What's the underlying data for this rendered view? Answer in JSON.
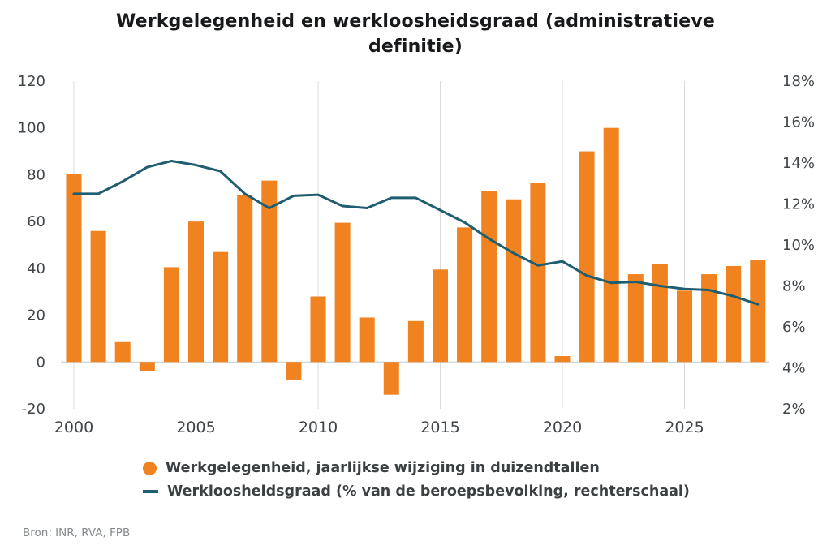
{
  "title": "Werkgelegenheid en werkloosheidsgraad (administratieve\ndefinitie)",
  "source": "Bron: INR, RVA, FPB",
  "legend": {
    "bars": "Werkgelegenheid, jaarlijkse wijziging in duizendtallen",
    "line": "Werkloosheidsgraad (% van de beroepsbevolking, rechterschaal)"
  },
  "colors": {
    "bar": "#F0821F",
    "line": "#1F5D70",
    "grid": "#D9DBDD",
    "zero": "#C6CACC",
    "axis_text": "#41464a",
    "legend_text": "#3b4043",
    "source_text": "#84888b"
  },
  "chart_data": {
    "type": "bar",
    "title": "Werkgelegenheid en werkloosheidsgraad (administratieve definitie)",
    "x": [
      2000,
      2001,
      2002,
      2003,
      2004,
      2005,
      2006,
      2007,
      2008,
      2009,
      2010,
      2011,
      2012,
      2013,
      2014,
      2015,
      2016,
      2017,
      2018,
      2019,
      2020,
      2021,
      2022,
      2023,
      2024,
      2025,
      2026,
      2027,
      2028
    ],
    "x_ticks": [
      2000,
      2005,
      2010,
      2015,
      2020,
      2025
    ],
    "left_axis": {
      "min": -20,
      "max": 120,
      "tick_step": 20,
      "suffix": ""
    },
    "right_axis": {
      "min": 2,
      "max": 18,
      "tick_step": 2,
      "suffix": "%"
    },
    "grid": "vertical-only",
    "legend_position": "bottom",
    "series": [
      {
        "name": "Werkgelegenheid, jaarlijkse wijziging in duizendtallen",
        "type": "bar",
        "axis": "left",
        "values": [
          80.5,
          56,
          8.5,
          -4,
          40.5,
          60,
          47,
          71.5,
          77.5,
          -7.5,
          28,
          59.5,
          19,
          -14,
          17.5,
          39.5,
          57.5,
          73,
          69.5,
          76.5,
          2.5,
          90,
          100,
          37.5,
          42,
          30.5,
          37.5,
          41,
          43.5
        ]
      },
      {
        "name": "Werkloosheidsgraad (% van de beroepsbevolking, rechterschaal)",
        "type": "line",
        "axis": "right",
        "values": [
          12.5,
          12.5,
          13.1,
          13.8,
          14.1,
          13.9,
          13.6,
          12.5,
          11.8,
          12.4,
          12.45,
          11.9,
          11.8,
          12.3,
          12.3,
          11.7,
          11.1,
          10.3,
          9.6,
          9.0,
          9.2,
          8.5,
          8.15,
          8.2,
          8.0,
          7.85,
          7.8,
          7.5,
          7.1
        ]
      }
    ]
  }
}
